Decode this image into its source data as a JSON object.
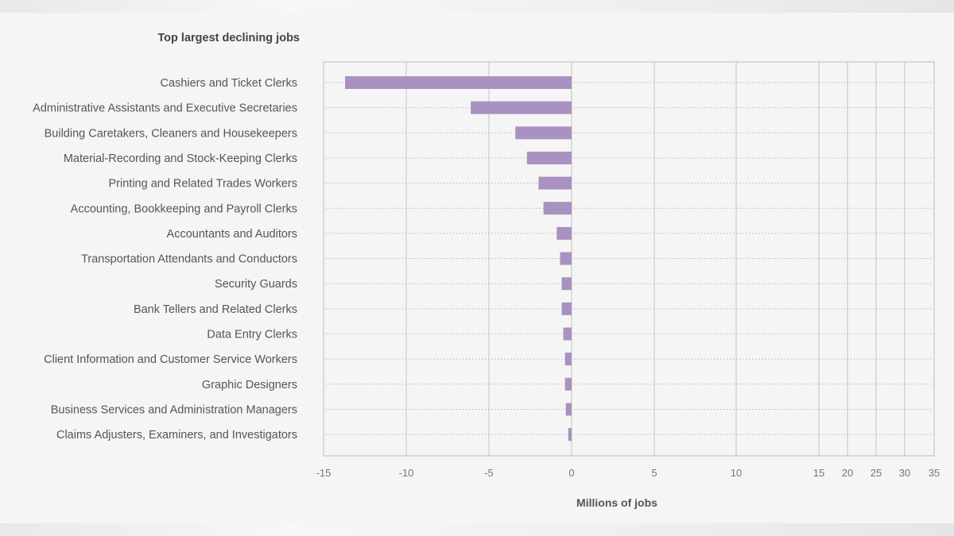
{
  "chart_data": {
    "type": "bar",
    "orientation": "horizontal",
    "title": "Top largest declining jobs",
    "xlabel": "Millions of jobs",
    "ylabel": "",
    "xlim": [
      -15,
      35
    ],
    "xticks": [
      "-15",
      "-10",
      "-5",
      "0",
      "5",
      "10",
      "15",
      "20",
      "25",
      "30",
      "35"
    ],
    "grid": true,
    "bar_color": "#a991c1",
    "categories": [
      "Cashiers and Ticket Clerks",
      "Administrative Assistants and Executive Secretaries",
      "Building Caretakers, Cleaners and Housekeepers",
      "Material-Recording and Stock-Keeping Clerks",
      "Printing and Related Trades Workers",
      "Accounting, Bookkeeping and Payroll Clerks",
      "Accountants and Auditors",
      "Transportation Attendants and Conductors",
      "Security Guards",
      "Bank Tellers and Related Clerks",
      "Data Entry Clerks",
      "Client Information and Customer Service Workers",
      "Graphic Designers",
      "Business Services and Administration Managers",
      "Claims Adjusters, Examiners, and Investigators"
    ],
    "values": [
      -13.7,
      -6.1,
      -3.4,
      -2.7,
      -2.0,
      -1.7,
      -0.9,
      -0.7,
      -0.6,
      -0.6,
      -0.5,
      -0.4,
      -0.4,
      -0.35,
      -0.2
    ]
  }
}
